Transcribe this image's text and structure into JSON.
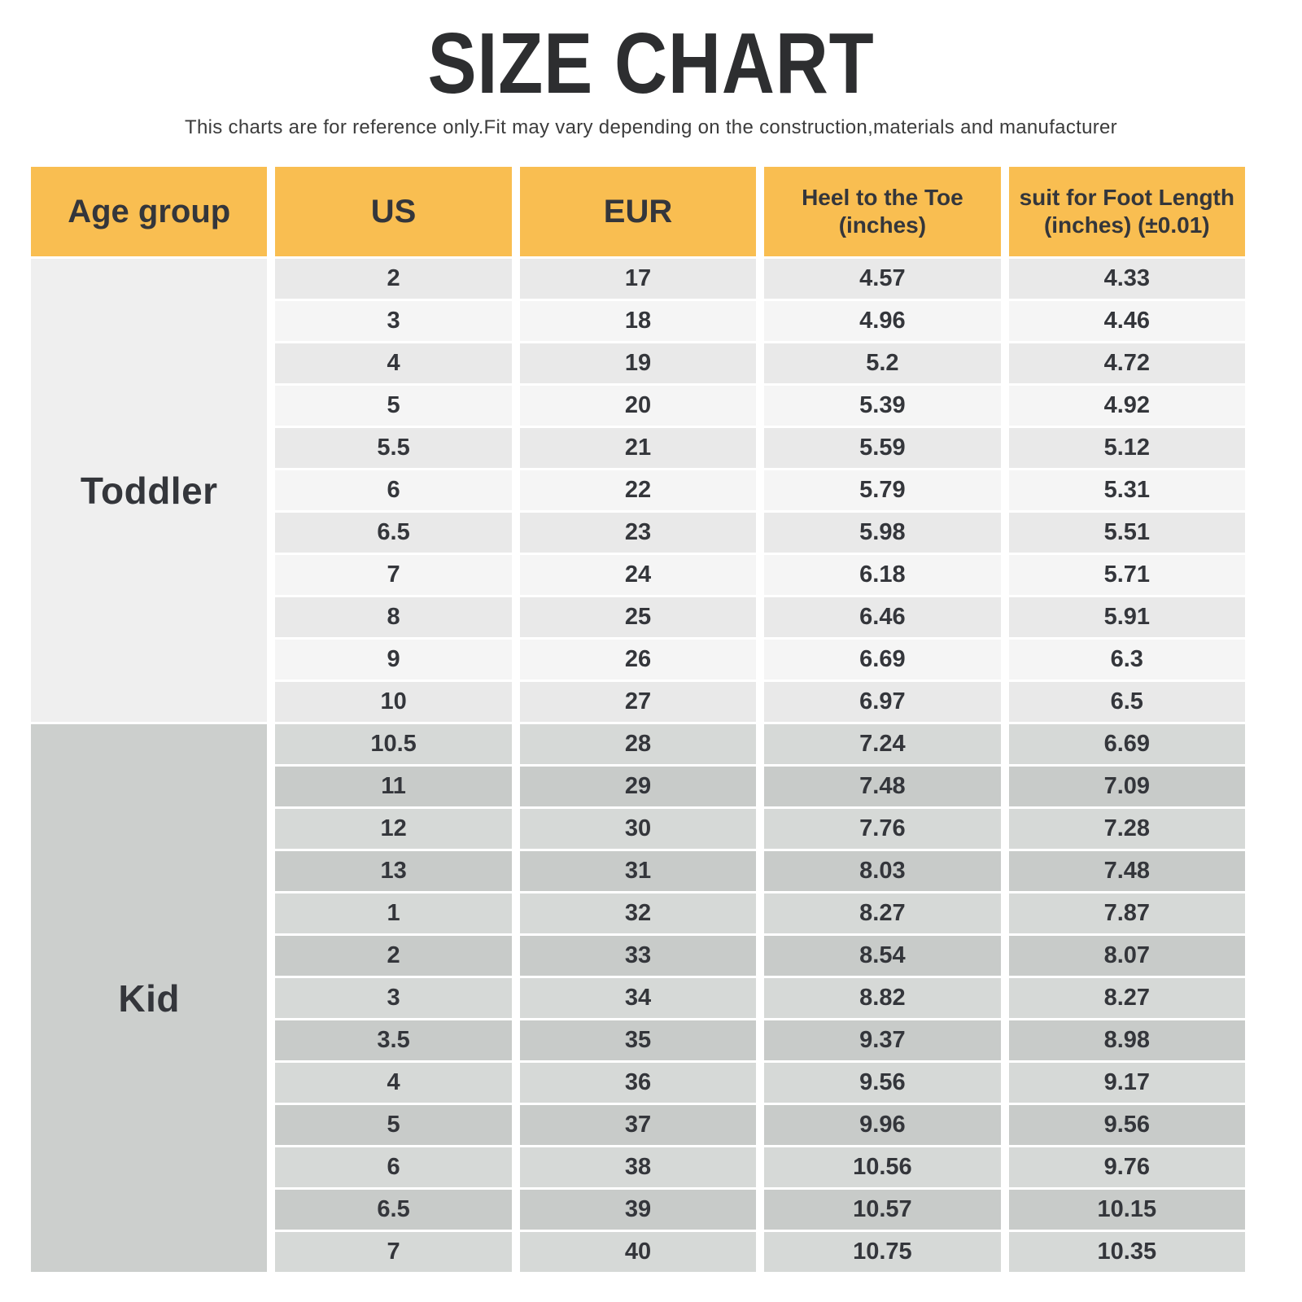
{
  "title": "SIZE CHART",
  "subtitle": "This charts are for reference only.Fit may vary depending on the construction,materials and manufacturer",
  "colors": {
    "header_bg": "#F9BE51",
    "toddler_label_bg": "#EFEFEF",
    "toddler_row_colors": [
      "#E9E9E9",
      "#F5F5F5"
    ],
    "kid_label_bg": "#CCCFCD",
    "kid_row_colors": [
      "#D6D9D7",
      "#C8CBC9"
    ],
    "text_dark": "#34363B"
  },
  "table_header": [
    {
      "line1": "Age group"
    },
    {
      "line1": "US"
    },
    {
      "line1": "EUR"
    },
    {
      "line1": "Heel to the Toe",
      "line2": "(inches)"
    },
    {
      "line1": "suit for Foot Length",
      "line2": "(inches) (±0.01)"
    }
  ],
  "chart_data": {
    "type": "table",
    "title": "SIZE CHART",
    "columns": [
      "Age group",
      "US",
      "EUR",
      "Heel to the Toe (inches)",
      "suit for Foot Length (inches) (±0.01)"
    ],
    "sections": [
      {
        "age_group": "Toddler",
        "rows": [
          [
            "2",
            "17",
            "4.57",
            "4.33"
          ],
          [
            "3",
            "18",
            "4.96",
            "4.46"
          ],
          [
            "4",
            "19",
            "5.2",
            "4.72"
          ],
          [
            "5",
            "20",
            "5.39",
            "4.92"
          ],
          [
            "5.5",
            "21",
            "5.59",
            "5.12"
          ],
          [
            "6",
            "22",
            "5.79",
            "5.31"
          ],
          [
            "6.5",
            "23",
            "5.98",
            "5.51"
          ],
          [
            "7",
            "24",
            "6.18",
            "5.71"
          ],
          [
            "8",
            "25",
            "6.46",
            "5.91"
          ],
          [
            "9",
            "26",
            "6.69",
            "6.3"
          ],
          [
            "10",
            "27",
            "6.97",
            "6.5"
          ]
        ]
      },
      {
        "age_group": "Kid",
        "rows": [
          [
            "10.5",
            "28",
            "7.24",
            "6.69"
          ],
          [
            "11",
            "29",
            "7.48",
            "7.09"
          ],
          [
            "12",
            "30",
            "7.76",
            "7.28"
          ],
          [
            "13",
            "31",
            "8.03",
            "7.48"
          ],
          [
            "1",
            "32",
            "8.27",
            "7.87"
          ],
          [
            "2",
            "33",
            "8.54",
            "8.07"
          ],
          [
            "3",
            "34",
            "8.82",
            "8.27"
          ],
          [
            "3.5",
            "35",
            "9.37",
            "8.98"
          ],
          [
            "4",
            "36",
            "9.56",
            "9.17"
          ],
          [
            "5",
            "37",
            "9.96",
            "9.56"
          ],
          [
            "6",
            "38",
            "10.56",
            "9.76"
          ],
          [
            "6.5",
            "39",
            "10.57",
            "10.15"
          ],
          [
            "7",
            "40",
            "10.75",
            "10.35"
          ]
        ]
      }
    ]
  }
}
